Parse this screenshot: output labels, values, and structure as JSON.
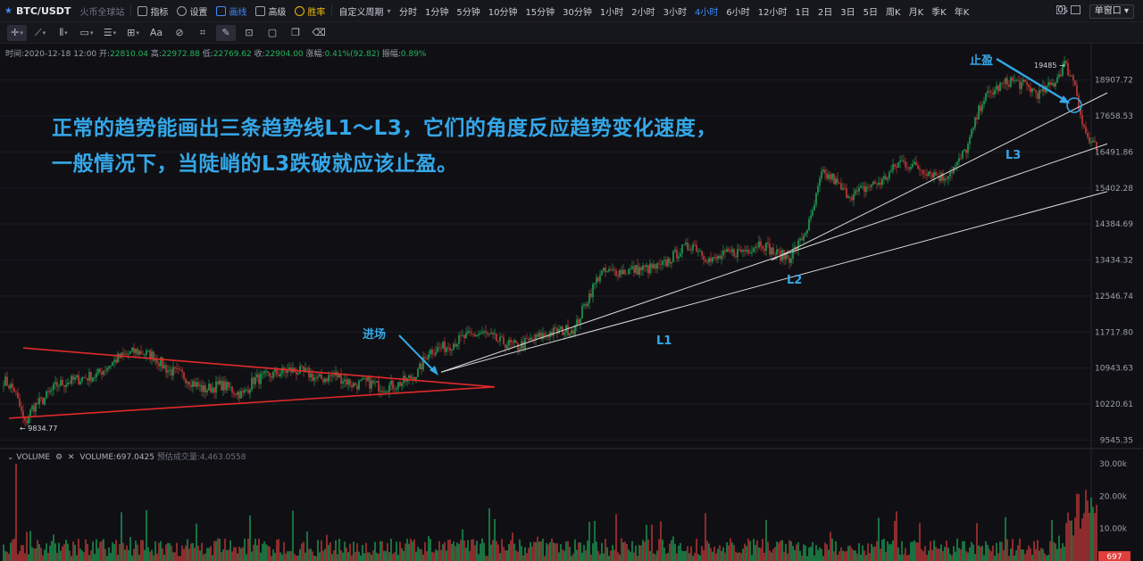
{
  "topbar": {
    "symbol": "BTC/USDT",
    "exchange": "火币全球站",
    "indicators": "指标",
    "settings": "设置",
    "drawing": "画线",
    "advanced": "高级",
    "winrate": "胜率",
    "custom_period": "自定义周期",
    "timeframes": [
      "分时",
      "1分钟",
      "5分钟",
      "10分钟",
      "15分钟",
      "30分钟",
      "1小时",
      "2小时",
      "3小时",
      "4小时",
      "6小时",
      "12小时",
      "1日",
      "2日",
      "3日",
      "5日",
      "周K",
      "月K",
      "季K",
      "年K"
    ],
    "active_timeframe": "4小时",
    "latency": "0s",
    "layout": "单窗口"
  },
  "infoline": {
    "time_label": "时间:",
    "time": "2020-12-18 12:00",
    "open_label": "开:",
    "open": "22810.04",
    "high_label": "高:",
    "high": "22972.88",
    "low_label": "低:",
    "low": "22769.62",
    "close_label": "收:",
    "close": "22904.00",
    "change_label": "涨幅:",
    "change": "0.41%(92.82)",
    "amp_label": "振幅:",
    "amp": "0.89%"
  },
  "annotation": {
    "line1": "正常的趋势能画出三条趋势线L1～L3，它们的角度反应趋势变化速度，",
    "line2": "一般情况下，当陡峭的L3跌破就应该止盈。"
  },
  "volume": {
    "label": "VOLUME",
    "value_label": "VOLUME:697.0425",
    "estimate_label": "预估成交量:4,463.0558"
  },
  "colors": {
    "up": "#22b45e",
    "down": "#e0403c",
    "annotation": "#35a7e8",
    "triangle": "#e02a2a",
    "trendline": "#d9d9d9"
  },
  "chart_data": {
    "type": "candlestick",
    "timeframe": "4小时",
    "y_ticks": [
      18907.72,
      17658.53,
      16491.86,
      15402.28,
      14384.69,
      13434.32,
      12546.74,
      11717.8,
      10943.63,
      10220.61,
      9545.35
    ],
    "y_range": [
      9440,
      19680
    ],
    "log_scale": true,
    "price_path": [
      [
        0,
        10700
      ],
      [
        6,
        10500
      ],
      [
        12,
        9834
      ],
      [
        16,
        10150
      ],
      [
        22,
        10300
      ],
      [
        30,
        10600
      ],
      [
        40,
        10700
      ],
      [
        52,
        10800
      ],
      [
        64,
        11150
      ],
      [
        74,
        11300
      ],
      [
        84,
        11200
      ],
      [
        92,
        10900
      ],
      [
        100,
        10800
      ],
      [
        112,
        10500
      ],
      [
        122,
        10600
      ],
      [
        134,
        10400
      ],
      [
        140,
        10700
      ],
      [
        150,
        10800
      ],
      [
        160,
        10900
      ],
      [
        170,
        10850
      ],
      [
        176,
        10700
      ],
      [
        186,
        10800
      ],
      [
        196,
        10600
      ],
      [
        204,
        10650
      ],
      [
        212,
        10550
      ],
      [
        220,
        10600
      ],
      [
        226,
        10700
      ],
      [
        232,
        10850
      ],
      [
        238,
        11300
      ],
      [
        248,
        11400
      ],
      [
        258,
        11600
      ],
      [
        268,
        11700
      ],
      [
        278,
        11500
      ],
      [
        288,
        11400
      ],
      [
        296,
        11550
      ],
      [
        306,
        11700
      ],
      [
        320,
        11800
      ],
      [
        326,
        12400
      ],
      [
        334,
        13100
      ],
      [
        344,
        13150
      ],
      [
        356,
        13200
      ],
      [
        368,
        13250
      ],
      [
        378,
        13650
      ],
      [
        386,
        13850
      ],
      [
        396,
        13400
      ],
      [
        406,
        13600
      ],
      [
        416,
        13700
      ],
      [
        424,
        13900
      ],
      [
        432,
        13600
      ],
      [
        440,
        13500
      ],
      [
        446,
        13900
      ],
      [
        452,
        14500
      ],
      [
        458,
        15800
      ],
      [
        464,
        15700
      ],
      [
        470,
        15300
      ],
      [
        476,
        15200
      ],
      [
        484,
        15450
      ],
      [
        492,
        15600
      ],
      [
        502,
        16200
      ],
      [
        510,
        16050
      ],
      [
        518,
        15900
      ],
      [
        526,
        15700
      ],
      [
        534,
        16100
      ],
      [
        540,
        16700
      ],
      [
        548,
        18200
      ],
      [
        556,
        18600
      ],
      [
        564,
        18900
      ],
      [
        572,
        18700
      ],
      [
        580,
        18400
      ],
      [
        588,
        18800
      ],
      [
        594,
        19485
      ],
      [
        600,
        18800
      ],
      [
        604,
        17400
      ],
      [
        608,
        16800
      ],
      [
        612,
        16600
      ]
    ],
    "price_high_label": "19485",
    "price_low_label": "9834.77",
    "last_volume": "697",
    "volume_ticks": [
      "30.00k",
      "20.00k",
      "10.00k"
    ],
    "volume_range": [
      0,
      30000
    ],
    "trendlines": [
      {
        "name": "L1",
        "from": [
          245,
          10860
        ],
        "to": [
          612,
          15300
        ]
      },
      {
        "name": "L2",
        "from": [
          245,
          10860
        ],
        "to": [
          612,
          16750
        ]
      },
      {
        "name": "L3",
        "from": [
          430,
          13430
        ],
        "to": [
          612,
          18450
        ]
      }
    ],
    "triangle": {
      "upper": {
        "from": [
          8,
          11370
        ],
        "to": [
          271,
          10560
        ]
      },
      "lower": {
        "from": [
          0,
          9950
        ],
        "to": [
          271,
          10560
        ]
      }
    },
    "labels": {
      "L1": "L1",
      "L2": "L2",
      "L3": "L3",
      "entry": "进场",
      "take_profit": "止盈"
    }
  }
}
